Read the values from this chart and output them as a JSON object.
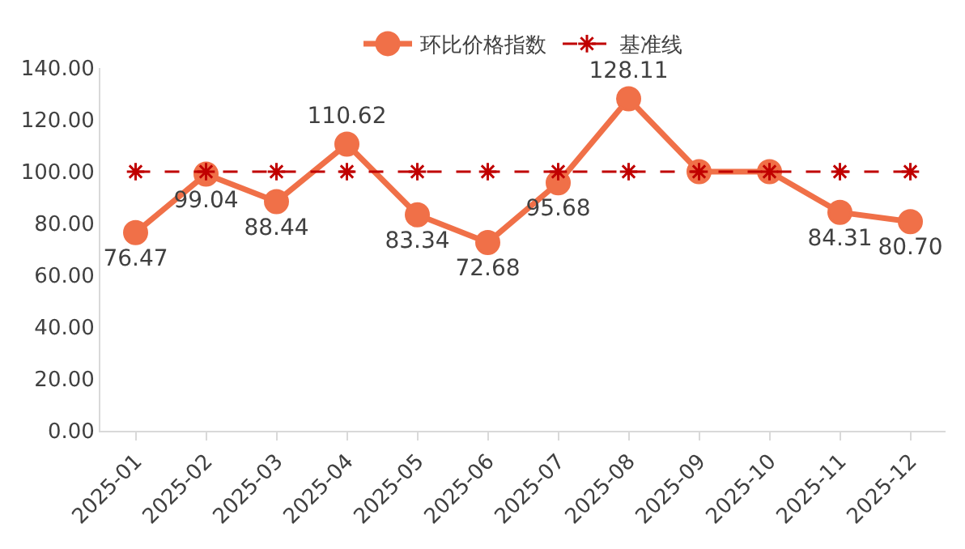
{
  "chart_data": {
    "type": "line",
    "categories": [
      "2025-01",
      "2025-02",
      "2025-03",
      "2025-04",
      "2025-05",
      "2025-06",
      "2025-07",
      "2025-08",
      "2025-09",
      "2025-10",
      "2025-11",
      "2025-12"
    ],
    "series": [
      {
        "name": "环比价格指数",
        "color": "#f07048",
        "marker": "circle",
        "line_style": "solid",
        "values": [
          76.47,
          99.04,
          88.44,
          110.62,
          83.34,
          72.68,
          95.68,
          128.11,
          100,
          100,
          84.31,
          80.7
        ],
        "value_labels": [
          "76.47",
          "99.04",
          "88.44",
          "110.62",
          "83.34",
          "72.68",
          "95.68",
          "128.11",
          null,
          null,
          "84.31",
          "80.70"
        ]
      },
      {
        "name": "基准线",
        "color": "#c00000",
        "marker": "cross",
        "line_style": "dashed",
        "values": [
          100,
          100,
          100,
          100,
          100,
          100,
          100,
          100,
          100,
          100,
          100,
          100
        ]
      }
    ],
    "ylim": [
      0,
      140
    ],
    "yticks": [
      {
        "value": 0,
        "label": "0.00"
      },
      {
        "value": 20,
        "label": "20.00"
      },
      {
        "value": 40,
        "label": "40.00"
      },
      {
        "value": 60,
        "label": "60.00"
      },
      {
        "value": 80,
        "label": "80.00"
      },
      {
        "value": 100,
        "label": "100.00"
      },
      {
        "value": 120,
        "label": "120.00"
      },
      {
        "value": 140,
        "label": "140.00"
      }
    ],
    "grid": false,
    "legend": "top"
  }
}
